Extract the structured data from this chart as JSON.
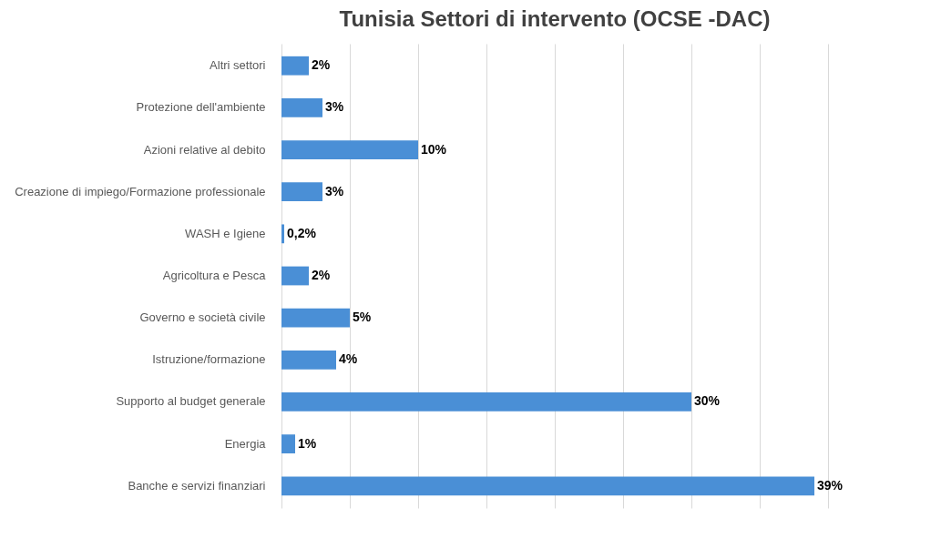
{
  "chart_data": {
    "type": "bar",
    "orientation": "horizontal",
    "title": "Tunisia Settori di intervento (OCSE -DAC)",
    "categories": [
      "Altri settori",
      "Protezione dell'ambiente",
      "Azioni relative al debito",
      "Creazione di impiego/Formazione professionale",
      "WASH e Igiene",
      "Agricoltura e Pesca",
      "Governo e società civile",
      "Istruzione/formazione",
      "Supporto al budget generale",
      "Energia",
      "Banche e servizi finanziari"
    ],
    "values": [
      2,
      3,
      10,
      3,
      0.2,
      2,
      5,
      4,
      30,
      1,
      39
    ],
    "value_labels": [
      "2%",
      "3%",
      "10%",
      "3%",
      "0,2%",
      "2%",
      "5%",
      "4%",
      "30%",
      "1%",
      "39%"
    ],
    "color": "#4a8fd6",
    "xticks": [
      {
        "value": 0,
        "label": null
      },
      {
        "value": 5,
        "label": null
      },
      {
        "value": 10,
        "label": null
      },
      {
        "value": 15,
        "label": null
      },
      {
        "value": 20,
        "label": null
      },
      {
        "value": 25,
        "label": null
      },
      {
        "value": 30,
        "label": null
      },
      {
        "value": 35,
        "label": null
      },
      {
        "value": 40,
        "label": null
      }
    ],
    "tick_labels": "y",
    "grid": "x"
  }
}
